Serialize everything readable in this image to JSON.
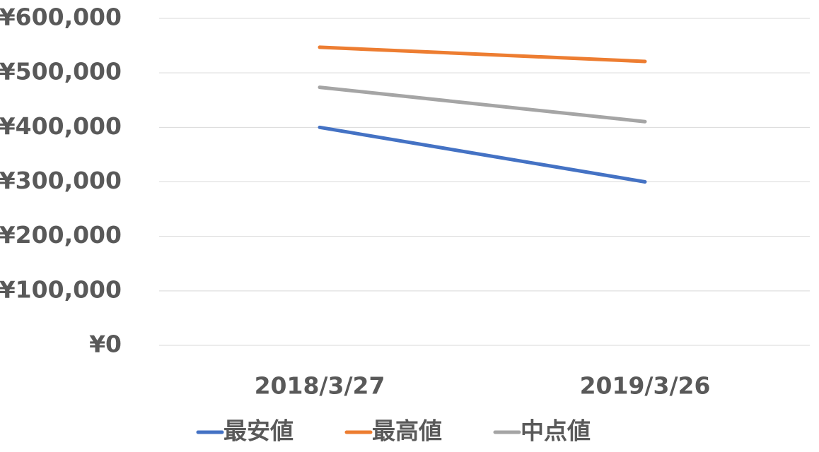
{
  "chart_data": {
    "type": "line",
    "categories": [
      "2018/3/27",
      "2019/3/26"
    ],
    "series": [
      {
        "name": "最安値",
        "color": "#4472c4",
        "values": [
          400000,
          300000
        ]
      },
      {
        "name": "最高値",
        "color": "#ed7d31",
        "values": [
          547000,
          521000
        ]
      },
      {
        "name": "中点値",
        "color": "#a5a5a5",
        "values": [
          473500,
          410500
        ]
      }
    ],
    "ylim": [
      0,
      600000
    ],
    "yticks": [
      {
        "value": 0,
        "label": "¥0"
      },
      {
        "value": 100000,
        "label": "¥100,000"
      },
      {
        "value": 200000,
        "label": "¥200,000"
      },
      {
        "value": 300000,
        "label": "¥300,000"
      },
      {
        "value": 400000,
        "label": "¥400,000"
      },
      {
        "value": 500000,
        "label": "¥500,000"
      },
      {
        "value": 600000,
        "label": "¥600,000"
      }
    ],
    "grid": true,
    "legend": "bottom"
  }
}
